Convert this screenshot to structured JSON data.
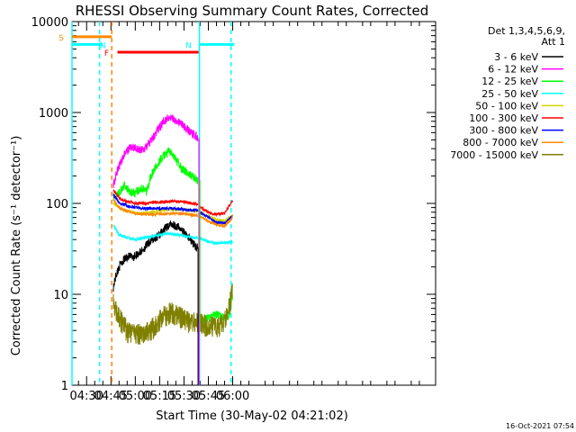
{
  "chart_data": {
    "type": "line",
    "title": "RHESSI Observing Summary Count Rates, Corrected",
    "xlabel": "Start Time (30-May-02 04:21:02)",
    "ylabel": "Corrected Count Rate (s⁻¹ detector⁻¹)",
    "yscale": "log",
    "ylim": [
      1,
      10000
    ],
    "xlim_min": [
      261,
      485
    ],
    "y_tick_labels": [
      "1",
      "10",
      "100",
      "1000",
      "10000"
    ],
    "x_ticks": [
      {
        "label": "04:30",
        "min": 270
      },
      {
        "label": "04:45",
        "min": 285
      },
      {
        "label": "05:00",
        "min": 300
      },
      {
        "label": "05:15",
        "min": 315
      },
      {
        "label": "05:30",
        "min": 330
      },
      {
        "label": "05:45",
        "min": 345
      },
      {
        "label": "06:00",
        "min": 360
      }
    ],
    "legend": {
      "header": [
        "Det 1,3,4,5,6,9,",
        "Att 1"
      ],
      "position": "right"
    },
    "series": [
      {
        "name": "3 - 6 keV",
        "color": "#000000",
        "points": [
          [
            286.5,
            12
          ],
          [
            288,
            16
          ],
          [
            291,
            22
          ],
          [
            295,
            26
          ],
          [
            299,
            26
          ],
          [
            304,
            30
          ],
          [
            309,
            38
          ],
          [
            314,
            44
          ],
          [
            318,
            52
          ],
          [
            322,
            60
          ],
          [
            326,
            56
          ],
          [
            330,
            48
          ],
          [
            334,
            40
          ],
          [
            337,
            34
          ],
          [
            338.5,
            33
          ]
        ]
      },
      {
        "name": "6 - 12 keV",
        "color": "#ff00ff",
        "points": [
          [
            286.5,
            160
          ],
          [
            289,
            230
          ],
          [
            293,
            340
          ],
          [
            297,
            420
          ],
          [
            301,
            400
          ],
          [
            305,
            390
          ],
          [
            309,
            470
          ],
          [
            314,
            650
          ],
          [
            318,
            830
          ],
          [
            321,
            900
          ],
          [
            325,
            830
          ],
          [
            329,
            730
          ],
          [
            334,
            610
          ],
          [
            337,
            560
          ],
          [
            338.5,
            520
          ]
        ]
      },
      {
        "name": "12 - 25 keV",
        "color": "#00ff00",
        "points": [
          [
            286.5,
            120
          ],
          [
            289,
            125
          ],
          [
            293,
            160
          ],
          [
            297,
            135
          ],
          [
            300,
            130
          ],
          [
            304,
            150
          ],
          [
            307,
            135
          ],
          [
            309,
            190
          ],
          [
            314,
            280
          ],
          [
            318,
            340
          ],
          [
            321,
            380
          ],
          [
            325,
            300
          ],
          [
            329,
            240
          ],
          [
            333,
            210
          ],
          [
            337,
            190
          ],
          [
            338.5,
            180
          ]
        ],
        "tail": [
          [
            340,
            5
          ],
          [
            345,
            5.5
          ],
          [
            350,
            6
          ],
          [
            355,
            5.5
          ],
          [
            358,
            6
          ],
          [
            360,
            10
          ]
        ]
      },
      {
        "name": "25 - 50 keV",
        "color": "#00ffff",
        "points": [
          [
            286.5,
            58
          ],
          [
            290,
            45
          ],
          [
            295,
            42
          ],
          [
            300,
            40
          ],
          [
            306,
            42
          ],
          [
            312,
            44
          ],
          [
            318,
            46
          ],
          [
            324,
            46
          ],
          [
            330,
            44
          ],
          [
            335,
            42
          ],
          [
            338.5,
            42
          ]
        ],
        "tail": [
          [
            339.5,
            42
          ],
          [
            345,
            38
          ],
          [
            350,
            36
          ],
          [
            355,
            37
          ],
          [
            360,
            38
          ]
        ]
      },
      {
        "name": "50 - 100 keV",
        "color": "#d4d400",
        "points": [
          [
            286.5,
            100
          ],
          [
            292,
            85
          ],
          [
            298,
            80
          ],
          [
            304,
            78
          ],
          [
            310,
            80
          ],
          [
            316,
            84
          ],
          [
            322,
            86
          ],
          [
            328,
            86
          ],
          [
            334,
            84
          ],
          [
            338.5,
            82
          ]
        ],
        "tail": [
          [
            339.5,
            80
          ],
          [
            345,
            72
          ],
          [
            350,
            66
          ],
          [
            355,
            64
          ],
          [
            360,
            74
          ]
        ]
      },
      {
        "name": "100 - 300 keV",
        "color": "#ff0000",
        "points": [
          [
            286.5,
            140
          ],
          [
            290,
            115
          ],
          [
            295,
            105
          ],
          [
            300,
            100
          ],
          [
            306,
            100
          ],
          [
            312,
            102
          ],
          [
            318,
            104
          ],
          [
            324,
            106
          ],
          [
            330,
            104
          ],
          [
            335,
            100
          ],
          [
            338.5,
            98
          ]
        ],
        "tail": [
          [
            339.5,
            92
          ],
          [
            345,
            80
          ],
          [
            350,
            76
          ],
          [
            355,
            78
          ],
          [
            360,
            108
          ]
        ]
      },
      {
        "name": "300 - 800 keV",
        "color": "#0000ff",
        "points": [
          [
            286.5,
            125
          ],
          [
            290,
            102
          ],
          [
            295,
            94
          ],
          [
            300,
            90
          ],
          [
            306,
            88
          ],
          [
            312,
            88
          ],
          [
            318,
            88
          ],
          [
            324,
            88
          ],
          [
            330,
            86
          ],
          [
            335,
            84
          ],
          [
            338.5,
            84
          ]
        ],
        "tail": [
          [
            339.5,
            80
          ],
          [
            345,
            70
          ],
          [
            350,
            62
          ],
          [
            355,
            60
          ],
          [
            360,
            74
          ]
        ]
      },
      {
        "name": "800 - 7000 keV",
        "color": "#ff8800",
        "points": [
          [
            286.5,
            110
          ],
          [
            290,
            90
          ],
          [
            295,
            82
          ],
          [
            300,
            78
          ],
          [
            306,
            76
          ],
          [
            312,
            76
          ],
          [
            318,
            77
          ],
          [
            324,
            78
          ],
          [
            330,
            77
          ],
          [
            335,
            75
          ],
          [
            338.5,
            74
          ]
        ],
        "tail": [
          [
            339.5,
            72
          ],
          [
            345,
            64
          ],
          [
            350,
            58
          ],
          [
            355,
            56
          ],
          [
            360,
            70
          ]
        ]
      },
      {
        "name": "7000 - 15000 keV",
        "color": "#808000",
        "points": [
          [
            286.5,
            8
          ],
          [
            289,
            6
          ],
          [
            292,
            5
          ],
          [
            295,
            4
          ],
          [
            298,
            3.8
          ],
          [
            302,
            3.8
          ],
          [
            306,
            4
          ],
          [
            310,
            4.2
          ],
          [
            314,
            5
          ],
          [
            318,
            6
          ],
          [
            322,
            6.5
          ],
          [
            326,
            6
          ],
          [
            330,
            5.5
          ],
          [
            334,
            5
          ],
          [
            338.5,
            5
          ]
        ],
        "tail": [
          [
            340,
            5
          ],
          [
            345,
            4.5
          ],
          [
            350,
            4.5
          ],
          [
            355,
            5
          ],
          [
            360,
            11
          ]
        ]
      }
    ],
    "annotations": {
      "flags": [
        {
          "label": "S",
          "color": "#ff8800",
          "from": 261,
          "to": 285.5,
          "y": 6800
        },
        {
          "label": "N",
          "color": "#00ffff",
          "from": 261,
          "to": 280,
          "y": 5600,
          "label_at": 280
        },
        {
          "label": "N",
          "color": "#00ffff",
          "from": 339.5,
          "to": 361,
          "y": 5600
        },
        {
          "label": "F",
          "color": "#ff0000",
          "from": 289,
          "to": 339,
          "y": 4600
        }
      ],
      "vlines": [
        {
          "color": "#00ffff",
          "min": 261,
          "dashed": false
        },
        {
          "color": "#00ffff",
          "min": 278,
          "dashed": true
        },
        {
          "color": "#ff8800",
          "min": 285.5,
          "dashed": true
        },
        {
          "color": "#00ffff",
          "min": 339.5,
          "dashed": false
        },
        {
          "color": "#00ffff",
          "min": 359,
          "dashed": true
        }
      ]
    }
  },
  "footer": {
    "timestamp": "16-Oct-2021 07:54"
  }
}
